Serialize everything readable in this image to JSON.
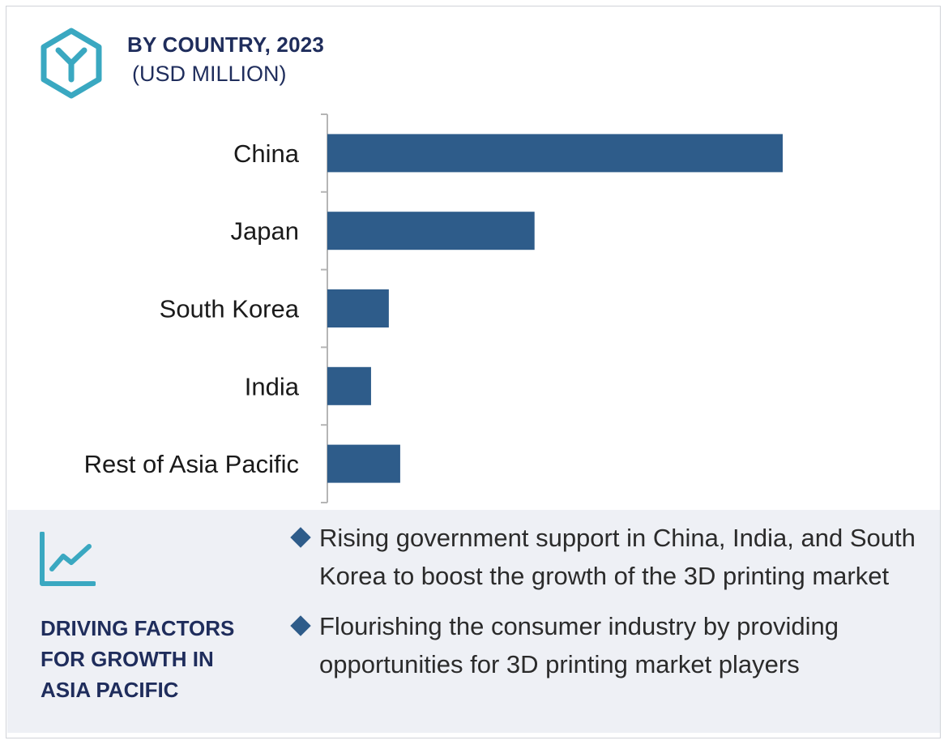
{
  "header": {
    "title": "BY COUNTRY, 2023",
    "subtitle": "(USD MILLION)",
    "logo_icon": "hexagon-y-logo-icon"
  },
  "chart_data": {
    "type": "bar",
    "orientation": "horizontal",
    "categories": [
      "China",
      "Japan",
      "South Korea",
      "India",
      "Rest of Asia Pacific"
    ],
    "values": [
      100,
      45.5,
      13.5,
      9.6,
      16
    ],
    "value_scale": "relative (no axis values printed; China = 100)",
    "xlim": [
      0,
      100
    ],
    "grid": false,
    "legend": "none",
    "bar_color": "#2e5c8a",
    "axis_color": "#b5b5b5"
  },
  "drivers": {
    "icon": "trend-line-chart-icon",
    "title": "DRIVING FACTORS FOR GROWTH IN ASIA PACIFIC",
    "bullets": [
      "Rising government support in China, India, and South Korea to boost the growth of the 3D printing market",
      "Flourishing the consumer industry by providing opportunities for 3D printing market players"
    ]
  },
  "colors": {
    "accent_teal": "#3aa8c1",
    "navy_text": "#1f2d5c",
    "panel_bg": "#eef0f5"
  }
}
